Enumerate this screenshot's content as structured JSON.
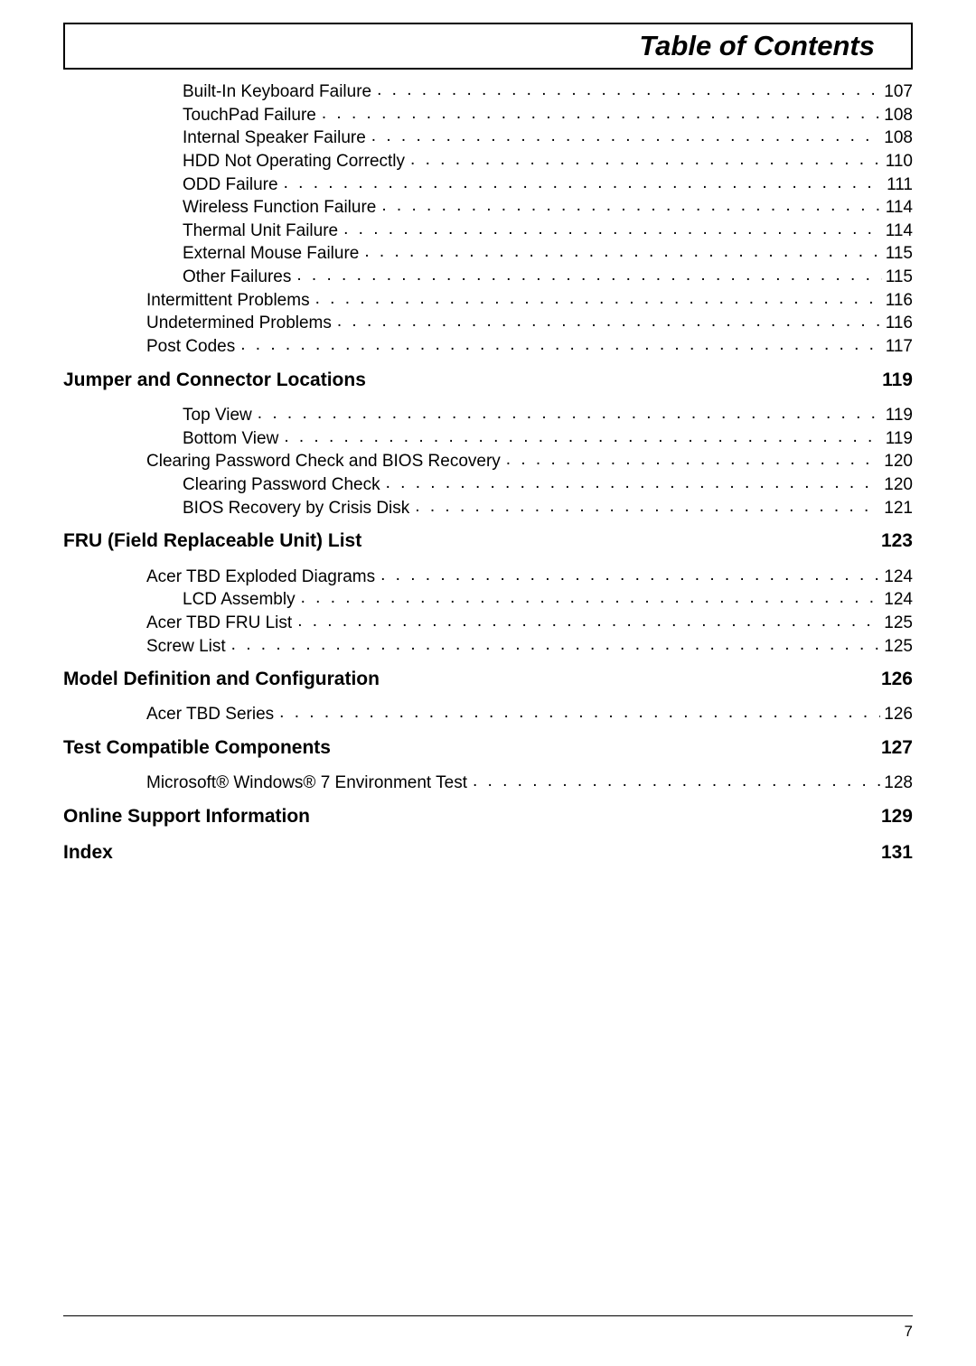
{
  "page": {
    "title": "Table of Contents",
    "footer_page_number": "7",
    "dot_char": ".",
    "colors": {
      "text": "#000000",
      "background": "#ffffff",
      "border": "#000000",
      "rule": "#000000"
    },
    "fonts": {
      "body_family": "Arial",
      "body_size_pt": 14,
      "section_size_pt": 16,
      "title_size_pt": 24
    }
  },
  "entries": [
    {
      "kind": "entry",
      "indent": 2,
      "label": "Built-In Keyboard Failure",
      "page": "107"
    },
    {
      "kind": "entry",
      "indent": 2,
      "label": "TouchPad Failure",
      "page": "108"
    },
    {
      "kind": "entry",
      "indent": 2,
      "label": "Internal Speaker Failure",
      "page": "108"
    },
    {
      "kind": "entry",
      "indent": 2,
      "label": "HDD Not Operating Correctly",
      "page": "110"
    },
    {
      "kind": "entry",
      "indent": 2,
      "label": "ODD Failure",
      "page": "111"
    },
    {
      "kind": "entry",
      "indent": 2,
      "label": "Wireless Function Failure",
      "page": "114"
    },
    {
      "kind": "entry",
      "indent": 2,
      "label": "Thermal Unit Failure",
      "page": "114"
    },
    {
      "kind": "entry",
      "indent": 2,
      "label": "External Mouse Failure",
      "page": "115"
    },
    {
      "kind": "entry",
      "indent": 2,
      "label": "Other Failures",
      "page": "115"
    },
    {
      "kind": "entry",
      "indent": 1,
      "label": "Intermittent Problems",
      "page": "116"
    },
    {
      "kind": "entry",
      "indent": 1,
      "label": "Undetermined Problems",
      "page": "116"
    },
    {
      "kind": "entry",
      "indent": 1,
      "label": "Post Codes",
      "page": "117"
    },
    {
      "kind": "section",
      "indent": 0,
      "label": "Jumper and Connector Locations",
      "page": "119"
    },
    {
      "kind": "entry",
      "indent": 2,
      "label": "Top View",
      "page": "119"
    },
    {
      "kind": "entry",
      "indent": 2,
      "label": "Bottom View",
      "page": "119"
    },
    {
      "kind": "entry",
      "indent": 1,
      "label": "Clearing Password Check and BIOS Recovery",
      "page": "120"
    },
    {
      "kind": "entry",
      "indent": 2,
      "label": "Clearing Password Check",
      "page": "120"
    },
    {
      "kind": "entry",
      "indent": 2,
      "label": "BIOS Recovery by Crisis Disk",
      "page": "121"
    },
    {
      "kind": "section",
      "indent": 0,
      "label": "FRU (Field Replaceable Unit) List",
      "page": "123"
    },
    {
      "kind": "entry",
      "indent": 1,
      "label": "Acer TBD Exploded Diagrams",
      "page": "124"
    },
    {
      "kind": "entry",
      "indent": 2,
      "label": "LCD Assembly",
      "page": "124"
    },
    {
      "kind": "entry",
      "indent": 1,
      "label": "Acer TBD FRU List",
      "page": "125"
    },
    {
      "kind": "entry",
      "indent": 1,
      "label": "Screw List",
      "page": "125"
    },
    {
      "kind": "section",
      "indent": 0,
      "label": "Model Definition and Configuration",
      "page": "126"
    },
    {
      "kind": "entry",
      "indent": 1,
      "label": "Acer TBD Series",
      "page": "126"
    },
    {
      "kind": "section",
      "indent": 0,
      "label": "Test Compatible Components",
      "page": "127"
    },
    {
      "kind": "entry",
      "indent": 1,
      "label": "Microsoft® Windows® 7 Environment Test",
      "page": "128"
    },
    {
      "kind": "section",
      "indent": 0,
      "label": "Online Support Information",
      "page": "129"
    },
    {
      "kind": "section",
      "indent": 0,
      "label": "Index",
      "page": "131"
    }
  ]
}
